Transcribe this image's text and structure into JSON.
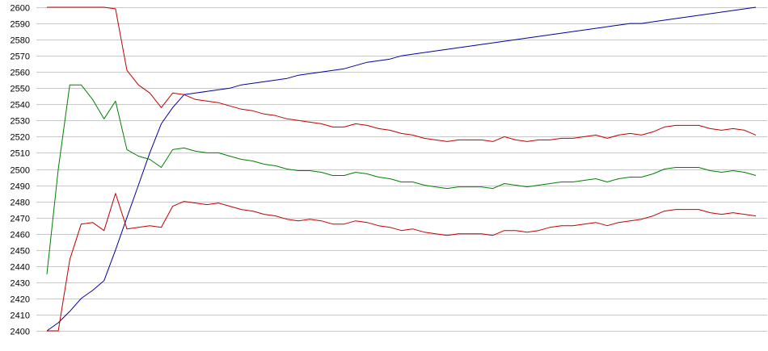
{
  "chart_data": {
    "type": "line",
    "title": "",
    "xlabel": "",
    "ylabel": "",
    "ylim": [
      2400,
      2600
    ],
    "y_ticks": [
      2400,
      2410,
      2420,
      2430,
      2440,
      2450,
      2460,
      2470,
      2480,
      2490,
      2500,
      2510,
      2520,
      2530,
      2540,
      2550,
      2560,
      2570,
      2580,
      2590,
      2600
    ],
    "grid": true,
    "legend": "none",
    "x": [
      1,
      2,
      3,
      4,
      5,
      6,
      7,
      8,
      9,
      10,
      11,
      12,
      13,
      14,
      15,
      16,
      17,
      18,
      19,
      20,
      21,
      22,
      23,
      24,
      25,
      26,
      27,
      28,
      29,
      30,
      31,
      32,
      33,
      34,
      35,
      36,
      37,
      38,
      39,
      40,
      41,
      42,
      43,
      44,
      45,
      46,
      47,
      48,
      49,
      50,
      51,
      52,
      53,
      54,
      55,
      56,
      57,
      58,
      59,
      60,
      61,
      62,
      63
    ],
    "xlim": [
      1,
      63
    ],
    "series": [
      {
        "color": "#0000a0",
        "values": [
          2400,
          2405,
          2412,
          2420,
          2425,
          2431,
          2450,
          2470,
          2490,
          2510,
          2528,
          2538,
          2546,
          2547,
          2548,
          2549,
          2550,
          2552,
          2553,
          2554,
          2555,
          2556,
          2558,
          2559,
          2560,
          2561,
          2562,
          2564,
          2566,
          2567,
          2568,
          2570,
          2571,
          2572,
          2573,
          2574,
          2575,
          2576,
          2577,
          2578,
          2579,
          2580,
          2581,
          2582,
          2583,
          2584,
          2585,
          2586,
          2587,
          2588,
          2589,
          2590,
          2590,
          2591,
          2592,
          2593,
          2594,
          2595,
          2596,
          2597,
          2598,
          2599,
          2600
        ]
      },
      {
        "color": "#c00000",
        "values": [
          2600,
          2600,
          2600,
          2600,
          2600,
          2600,
          2599,
          2561,
          2552,
          2547,
          2538,
          2547,
          2546,
          2543,
          2542,
          2541,
          2539,
          2537,
          2536,
          2534,
          2533,
          2531,
          2530,
          2529,
          2528,
          2526,
          2526,
          2528,
          2527,
          2525,
          2524,
          2522,
          2521,
          2519,
          2518,
          2517,
          2518,
          2518,
          2518,
          2517,
          2520,
          2518,
          2517,
          2518,
          2518,
          2519,
          2519,
          2520,
          2521,
          2519,
          2521,
          2522,
          2521,
          2523,
          2526,
          2527,
          2527,
          2527,
          2525,
          2524,
          2525,
          2524,
          2521
        ]
      },
      {
        "color": "#008000",
        "values": [
          2435,
          2500,
          2552,
          2552,
          2543,
          2531,
          2542,
          2512,
          2508,
          2506,
          2501,
          2512,
          2513,
          2511,
          2510,
          2510,
          2508,
          2506,
          2505,
          2503,
          2502,
          2500,
          2499,
          2499,
          2498,
          2496,
          2496,
          2498,
          2497,
          2495,
          2494,
          2492,
          2492,
          2490,
          2489,
          2488,
          2489,
          2489,
          2489,
          2488,
          2491,
          2490,
          2489,
          2490,
          2491,
          2492,
          2492,
          2493,
          2494,
          2492,
          2494,
          2495,
          2495,
          2497,
          2500,
          2501,
          2501,
          2501,
          2499,
          2498,
          2499,
          2498,
          2496
        ]
      },
      {
        "color": "#c00000",
        "values": [
          2400,
          2400,
          2444,
          2466,
          2467,
          2462,
          2485,
          2463,
          2464,
          2465,
          2464,
          2477,
          2480,
          2479,
          2478,
          2479,
          2477,
          2475,
          2474,
          2472,
          2471,
          2469,
          2468,
          2469,
          2468,
          2466,
          2466,
          2468,
          2467,
          2465,
          2464,
          2462,
          2463,
          2461,
          2460,
          2459,
          2460,
          2460,
          2460,
          2459,
          2462,
          2462,
          2461,
          2462,
          2464,
          2465,
          2465,
          2466,
          2467,
          2465,
          2467,
          2468,
          2469,
          2471,
          2474,
          2475,
          2475,
          2475,
          2473,
          2472,
          2473,
          2472,
          2471
        ]
      }
    ]
  }
}
